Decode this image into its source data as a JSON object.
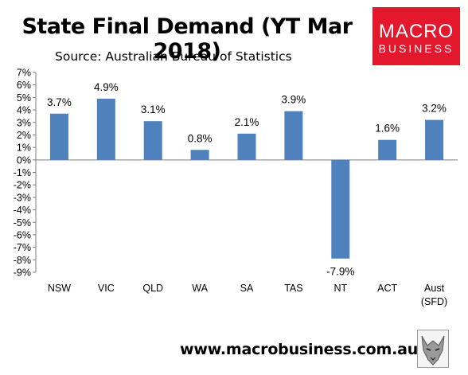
{
  "header": {
    "title": "State Final Demand (YT Mar 2018)",
    "subtitle": "Source: Australian Bureau of Statistics"
  },
  "logo": {
    "line1": "MACRO",
    "line2": "BUSINESS"
  },
  "footer": {
    "url": "www.macrobusiness.com.au"
  },
  "colors": {
    "bar": "#4f81bd",
    "logo_bg": "#e3182d"
  },
  "chart_data": {
    "type": "bar",
    "title": "State Final Demand (YT Mar 2018)",
    "subtitle": "Source: Australian Bureau of Statistics",
    "categories": [
      "NSW",
      "VIC",
      "QLD",
      "WA",
      "SA",
      "TAS",
      "NT",
      "ACT",
      "Aust\n(SFD)"
    ],
    "values": [
      3.7,
      4.9,
      3.1,
      0.8,
      2.1,
      3.9,
      -7.9,
      1.6,
      3.2
    ],
    "value_labels": [
      "3.7%",
      "4.9%",
      "3.1%",
      "0.8%",
      "2.1%",
      "3.9%",
      "-7.9%",
      "1.6%",
      "3.2%"
    ],
    "ylim": [
      -9,
      7
    ],
    "y_ticks": [
      7,
      6,
      5,
      4,
      3,
      2,
      1,
      0,
      -1,
      -2,
      -3,
      -4,
      -5,
      -6,
      -7,
      -8,
      -9
    ],
    "y_tick_labels": [
      "7%",
      "6%",
      "5%",
      "4%",
      "3%",
      "2%",
      "1%",
      "0%",
      "-1%",
      "-2%",
      "-3%",
      "-4%",
      "-5%",
      "-6%",
      "-7%",
      "-8%",
      "-9%"
    ],
    "xlabel": "",
    "ylabel": "",
    "grid": false,
    "legend": "none"
  }
}
